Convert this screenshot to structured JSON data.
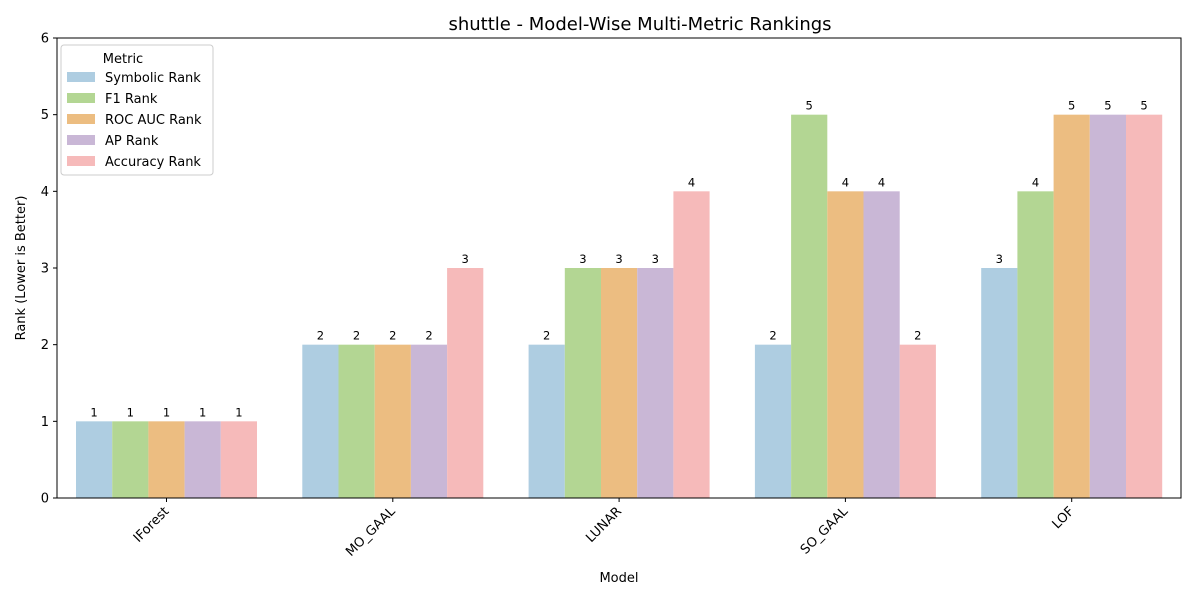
{
  "chart_data": {
    "type": "bar",
    "title": "shuttle - Model-Wise Multi-Metric Rankings",
    "xlabel": "Model",
    "ylabel": "Rank (Lower is Better)",
    "ylim": [
      0,
      6
    ],
    "yticks": [
      0,
      1,
      2,
      3,
      4,
      5,
      6
    ],
    "categories": [
      "IForest",
      "MO_GAAL",
      "LUNAR",
      "SO_GAAL",
      "LOF"
    ],
    "legend": {
      "title": "Metric",
      "placement": "top-left"
    },
    "grid": false,
    "series": [
      {
        "name": "Symbolic Rank",
        "color": "#aecde1",
        "values": [
          1,
          2,
          2,
          2,
          3
        ]
      },
      {
        "name": "F1 Rank",
        "color": "#b3d693",
        "values": [
          1,
          2,
          3,
          5,
          4
        ]
      },
      {
        "name": "ROC AUC Rank",
        "color": "#ecbd81",
        "values": [
          1,
          2,
          3,
          4,
          5
        ]
      },
      {
        "name": "AP Rank",
        "color": "#c9b7d6",
        "values": [
          1,
          2,
          3,
          4,
          5
        ]
      },
      {
        "name": "Accuracy Rank",
        "color": "#f6baba",
        "values": [
          1,
          3,
          4,
          2,
          5
        ]
      }
    ]
  }
}
